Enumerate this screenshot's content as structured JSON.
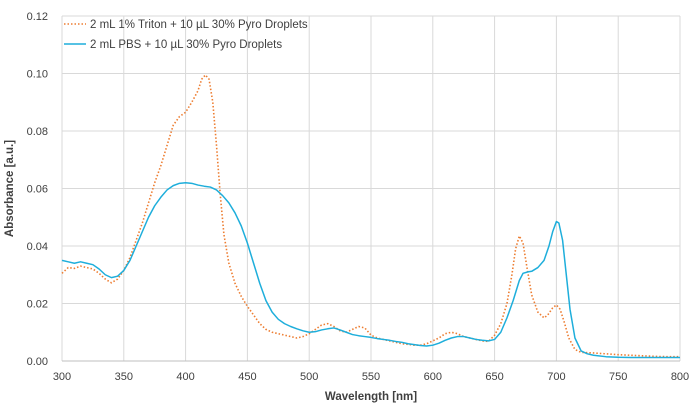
{
  "chart_data": {
    "type": "line",
    "title": "",
    "xlabel": "Wavelength [nm]",
    "ylabel": "Absorbance [a.u.]",
    "xlim": [
      300,
      800
    ],
    "ylim": [
      0,
      0.12
    ],
    "x_ticks": [
      300,
      350,
      400,
      450,
      500,
      550,
      600,
      650,
      700,
      750,
      800
    ],
    "y_ticks": [
      0.0,
      0.02,
      0.04,
      0.06,
      0.08,
      0.1,
      0.12
    ],
    "x_tick_labels": [
      "300",
      "350",
      "400",
      "450",
      "500",
      "550",
      "600",
      "650",
      "700",
      "750",
      "800"
    ],
    "y_tick_labels": [
      "0.00",
      "0.02",
      "0.04",
      "0.06",
      "0.08",
      "0.10",
      "0.12"
    ],
    "grid": true,
    "legend_position": "top-left",
    "series": [
      {
        "name": "2 mL 1% Triton + 10 µL 30% Pyro Droplets",
        "color": "#ed7d31",
        "style": "dotted",
        "points": [
          [
            300,
            0.0305
          ],
          [
            305,
            0.0325
          ],
          [
            310,
            0.0322
          ],
          [
            315,
            0.033
          ],
          [
            320,
            0.0325
          ],
          [
            325,
            0.032
          ],
          [
            330,
            0.0305
          ],
          [
            335,
            0.0285
          ],
          [
            340,
            0.0272
          ],
          [
            345,
            0.0285
          ],
          [
            350,
            0.0315
          ],
          [
            355,
            0.036
          ],
          [
            360,
            0.042
          ],
          [
            365,
            0.048
          ],
          [
            370,
            0.055
          ],
          [
            375,
            0.062
          ],
          [
            380,
            0.068
          ],
          [
            385,
            0.075
          ],
          [
            390,
            0.082
          ],
          [
            395,
            0.085
          ],
          [
            400,
            0.0865
          ],
          [
            405,
            0.09
          ],
          [
            410,
            0.094
          ],
          [
            413,
            0.098
          ],
          [
            416,
            0.0995
          ],
          [
            419,
            0.098
          ],
          [
            422,
            0.09
          ],
          [
            425,
            0.075
          ],
          [
            428,
            0.058
          ],
          [
            431,
            0.044
          ],
          [
            435,
            0.034
          ],
          [
            440,
            0.027
          ],
          [
            445,
            0.0225
          ],
          [
            450,
            0.019
          ],
          [
            455,
            0.016
          ],
          [
            460,
            0.013
          ],
          [
            465,
            0.011
          ],
          [
            470,
            0.01
          ],
          [
            475,
            0.0095
          ],
          [
            480,
            0.009
          ],
          [
            485,
            0.0085
          ],
          [
            490,
            0.008
          ],
          [
            495,
            0.0085
          ],
          [
            500,
            0.0095
          ],
          [
            505,
            0.011
          ],
          [
            510,
            0.0125
          ],
          [
            515,
            0.013
          ],
          [
            520,
            0.012
          ],
          [
            525,
            0.0105
          ],
          [
            530,
            0.01
          ],
          [
            535,
            0.011
          ],
          [
            540,
            0.012
          ],
          [
            545,
            0.0115
          ],
          [
            550,
            0.009
          ],
          [
            555,
            0.008
          ],
          [
            560,
            0.0075
          ],
          [
            565,
            0.007
          ],
          [
            570,
            0.0065
          ],
          [
            575,
            0.006
          ],
          [
            580,
            0.0058
          ],
          [
            585,
            0.0055
          ],
          [
            590,
            0.0055
          ],
          [
            595,
            0.006
          ],
          [
            600,
            0.007
          ],
          [
            605,
            0.008
          ],
          [
            610,
            0.0095
          ],
          [
            615,
            0.01
          ],
          [
            620,
            0.0095
          ],
          [
            625,
            0.0085
          ],
          [
            630,
            0.008
          ],
          [
            635,
            0.0075
          ],
          [
            640,
            0.007
          ],
          [
            645,
            0.0068
          ],
          [
            650,
            0.009
          ],
          [
            655,
            0.013
          ],
          [
            660,
            0.02
          ],
          [
            664,
            0.03
          ],
          [
            667,
            0.039
          ],
          [
            670,
            0.0435
          ],
          [
            673,
            0.041
          ],
          [
            676,
            0.033
          ],
          [
            680,
            0.023
          ],
          [
            685,
            0.017
          ],
          [
            690,
            0.015
          ],
          [
            693,
            0.016
          ],
          [
            697,
            0.0185
          ],
          [
            700,
            0.0195
          ],
          [
            703,
            0.018
          ],
          [
            706,
            0.014
          ],
          [
            710,
            0.008
          ],
          [
            715,
            0.004
          ],
          [
            720,
            0.003
          ],
          [
            730,
            0.0028
          ],
          [
            740,
            0.0025
          ],
          [
            750,
            0.0022
          ],
          [
            760,
            0.002
          ],
          [
            770,
            0.0018
          ],
          [
            780,
            0.0016
          ],
          [
            790,
            0.0015
          ],
          [
            800,
            0.0015
          ]
        ]
      },
      {
        "name": "2 mL PBS + 10 µL 30% Pyro Droplets",
        "color": "#1eaedb",
        "style": "solid",
        "points": [
          [
            300,
            0.035
          ],
          [
            305,
            0.0345
          ],
          [
            310,
            0.034
          ],
          [
            315,
            0.0345
          ],
          [
            320,
            0.034
          ],
          [
            325,
            0.0335
          ],
          [
            330,
            0.032
          ],
          [
            335,
            0.03
          ],
          [
            340,
            0.029
          ],
          [
            345,
            0.0295
          ],
          [
            350,
            0.0315
          ],
          [
            355,
            0.035
          ],
          [
            360,
            0.04
          ],
          [
            365,
            0.045
          ],
          [
            370,
            0.05
          ],
          [
            375,
            0.054
          ],
          [
            380,
            0.057
          ],
          [
            385,
            0.0595
          ],
          [
            390,
            0.061
          ],
          [
            395,
            0.0618
          ],
          [
            400,
            0.062
          ],
          [
            405,
            0.0618
          ],
          [
            410,
            0.0612
          ],
          [
            415,
            0.0608
          ],
          [
            420,
            0.0605
          ],
          [
            425,
            0.0595
          ],
          [
            430,
            0.0575
          ],
          [
            435,
            0.055
          ],
          [
            440,
            0.0515
          ],
          [
            445,
            0.047
          ],
          [
            450,
            0.041
          ],
          [
            455,
            0.034
          ],
          [
            460,
            0.027
          ],
          [
            465,
            0.021
          ],
          [
            470,
            0.017
          ],
          [
            475,
            0.0145
          ],
          [
            480,
            0.013
          ],
          [
            485,
            0.012
          ],
          [
            490,
            0.0112
          ],
          [
            495,
            0.0105
          ],
          [
            500,
            0.01
          ],
          [
            505,
            0.0102
          ],
          [
            510,
            0.0108
          ],
          [
            515,
            0.0112
          ],
          [
            520,
            0.0115
          ],
          [
            525,
            0.0108
          ],
          [
            530,
            0.01
          ],
          [
            535,
            0.0092
          ],
          [
            540,
            0.0088
          ],
          [
            545,
            0.0085
          ],
          [
            550,
            0.0082
          ],
          [
            555,
            0.0078
          ],
          [
            560,
            0.0075
          ],
          [
            565,
            0.0072
          ],
          [
            570,
            0.0068
          ],
          [
            575,
            0.0065
          ],
          [
            580,
            0.006
          ],
          [
            585,
            0.0057
          ],
          [
            590,
            0.0054
          ],
          [
            595,
            0.0052
          ],
          [
            600,
            0.0055
          ],
          [
            605,
            0.0062
          ],
          [
            610,
            0.0072
          ],
          [
            615,
            0.008
          ],
          [
            620,
            0.0085
          ],
          [
            625,
            0.0085
          ],
          [
            630,
            0.008
          ],
          [
            635,
            0.0075
          ],
          [
            640,
            0.0072
          ],
          [
            645,
            0.007
          ],
          [
            650,
            0.0075
          ],
          [
            655,
            0.01
          ],
          [
            660,
            0.015
          ],
          [
            665,
            0.021
          ],
          [
            670,
            0.028
          ],
          [
            673,
            0.0305
          ],
          [
            677,
            0.031
          ],
          [
            680,
            0.0312
          ],
          [
            685,
            0.0325
          ],
          [
            690,
            0.035
          ],
          [
            694,
            0.04
          ],
          [
            697,
            0.045
          ],
          [
            700,
            0.0485
          ],
          [
            702,
            0.048
          ],
          [
            705,
            0.042
          ],
          [
            708,
            0.03
          ],
          [
            711,
            0.018
          ],
          [
            715,
            0.008
          ],
          [
            720,
            0.0035
          ],
          [
            725,
            0.0025
          ],
          [
            730,
            0.002
          ],
          [
            740,
            0.0015
          ],
          [
            750,
            0.0013
          ],
          [
            760,
            0.0012
          ],
          [
            770,
            0.0012
          ],
          [
            780,
            0.0012
          ],
          [
            790,
            0.0012
          ],
          [
            800,
            0.0012
          ]
        ]
      }
    ]
  }
}
